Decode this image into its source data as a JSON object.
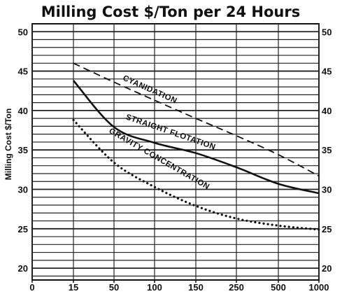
{
  "chart_data": {
    "type": "line",
    "title": "Milling Cost $/Ton per 24 Hours",
    "ylabel": "Milling Cost $/Ton",
    "xlabel": "",
    "x_categories": [
      "0",
      "15",
      "50",
      "100",
      "150",
      "250",
      "500",
      "1000"
    ],
    "y_ticks": [
      20,
      25,
      30,
      35,
      40,
      45,
      50
    ],
    "ylim": [
      18.5,
      51
    ],
    "grid": true,
    "series": [
      {
        "name": "CYANIDATION",
        "style": "dashed",
        "points": [
          [
            "15",
            46.0
          ],
          [
            "50",
            43.6
          ],
          [
            "100",
            41.3
          ],
          [
            "150",
            39.0
          ],
          [
            "250",
            36.8
          ],
          [
            "500",
            34.4
          ],
          [
            "1000",
            31.7
          ]
        ]
      },
      {
        "name": "STRAIGHT FLOTATION",
        "style": "solid",
        "points": [
          [
            "15",
            43.8
          ],
          [
            "50",
            37.9
          ],
          [
            "100",
            35.9
          ],
          [
            "150",
            34.6
          ],
          [
            "250",
            32.8
          ],
          [
            "500",
            30.7
          ],
          [
            "1000",
            29.5
          ]
        ]
      },
      {
        "name": "GRAVITY CONCENTRATION",
        "style": "dotted",
        "points": [
          [
            "15",
            38.8
          ],
          [
            "50",
            33.4
          ],
          [
            "100",
            30.3
          ],
          [
            "150",
            27.9
          ],
          [
            "250",
            26.3
          ],
          [
            "500",
            25.4
          ],
          [
            "1000",
            24.9
          ]
        ]
      }
    ]
  }
}
